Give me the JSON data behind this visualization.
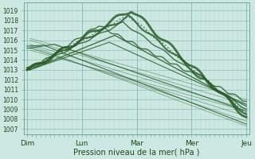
{
  "title": "Pression niveau de la mer( hPa )",
  "background_color": "#cde8e2",
  "grid_color_minor": "#b0d4cc",
  "grid_color_major": "#90bfb8",
  "line_color": "#2a5e2a",
  "ylim": [
    1006.5,
    1019.8
  ],
  "yticks": [
    1007,
    1008,
    1009,
    1010,
    1011,
    1012,
    1013,
    1014,
    1015,
    1016,
    1017,
    1018,
    1019
  ],
  "xtick_labels": [
    "Dim",
    "Lun",
    "Mar",
    "Mer",
    "Jeu"
  ],
  "xtick_positions": [
    0,
    1,
    2,
    3,
    4
  ],
  "vline_positions": [
    0,
    1,
    2,
    3,
    4
  ]
}
